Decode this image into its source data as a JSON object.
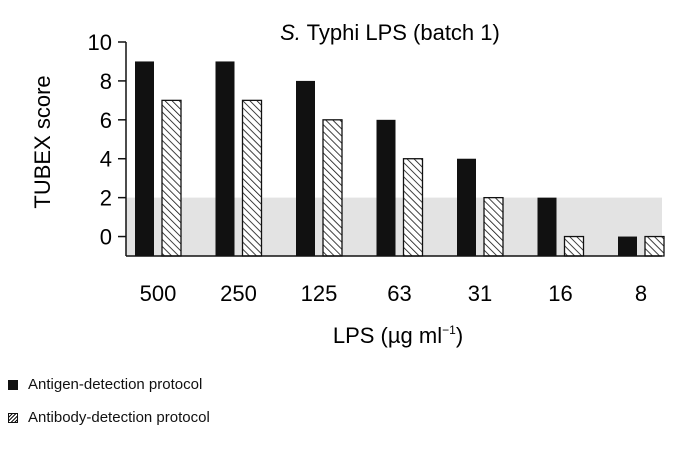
{
  "chart_data": {
    "type": "bar",
    "title": "S. Typhi LPS (batch 1)",
    "title_italic": "S.",
    "title_rest": " Typhi LPS (batch 1)",
    "xlabel": "LPS (µg ml",
    "xlabel_sup": "−1",
    "xlabel_close": ")",
    "ylabel": "TUBEX score",
    "categories": [
      "500",
      "250",
      "125",
      "63",
      "31",
      "16",
      "8"
    ],
    "ylim": [
      -1,
      10
    ],
    "yticks": [
      "0",
      "2",
      "4",
      "6",
      "8",
      "10"
    ],
    "shaded_band": [
      -1,
      2
    ],
    "series": [
      {
        "name": "Antigen-detection protocol",
        "style": "solid",
        "values": [
          9,
          9,
          8,
          6,
          4,
          2,
          0
        ]
      },
      {
        "name": "Antibody-detection protocol",
        "style": "hatched",
        "values": [
          7,
          7,
          6,
          4,
          2,
          0,
          0
        ]
      }
    ],
    "colors": {
      "bar": "#111111",
      "band": "#e3e3e3",
      "hatch": "#111111"
    }
  },
  "legend": {
    "items": [
      {
        "label": "Antigen-detection protocol",
        "style": "solid"
      },
      {
        "label": "Antibody-detection protocol",
        "style": "hatched"
      }
    ]
  }
}
